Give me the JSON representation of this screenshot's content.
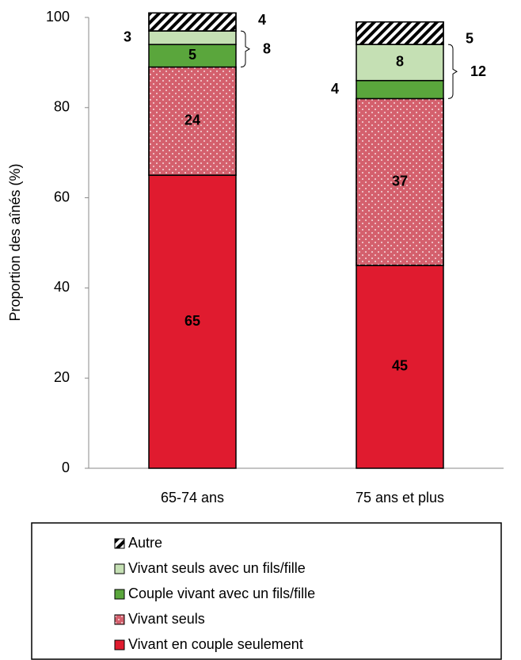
{
  "chart_data": {
    "type": "stacked_bar",
    "ylabel": "Proportion des aînés (%)",
    "categories": [
      "65-74 ans",
      "75 ans et plus"
    ],
    "series": [
      {
        "name": "Vivant en couple seulement",
        "color": "#e01b2f",
        "values": [
          65,
          45
        ]
      },
      {
        "name": "Vivant seuls",
        "color": "#d4606d",
        "pattern": "dots",
        "values": [
          24,
          37
        ]
      },
      {
        "name": "Couple vivant avec un fils/fille",
        "color": "#5aa63c",
        "values": [
          5,
          4
        ]
      },
      {
        "name": "Vivant seuls avec un fils/fille",
        "color": "#c5e0b4",
        "values": [
          3,
          8
        ]
      },
      {
        "name": "Autre",
        "color": "#ffffff",
        "pattern": "hatch",
        "values": [
          4,
          5
        ]
      }
    ],
    "brace_totals": [
      8,
      12
    ],
    "ylim": [
      0,
      100
    ],
    "yticks": [
      0,
      20,
      40,
      60,
      80,
      100
    ],
    "grid": false,
    "legend": "bottom"
  }
}
